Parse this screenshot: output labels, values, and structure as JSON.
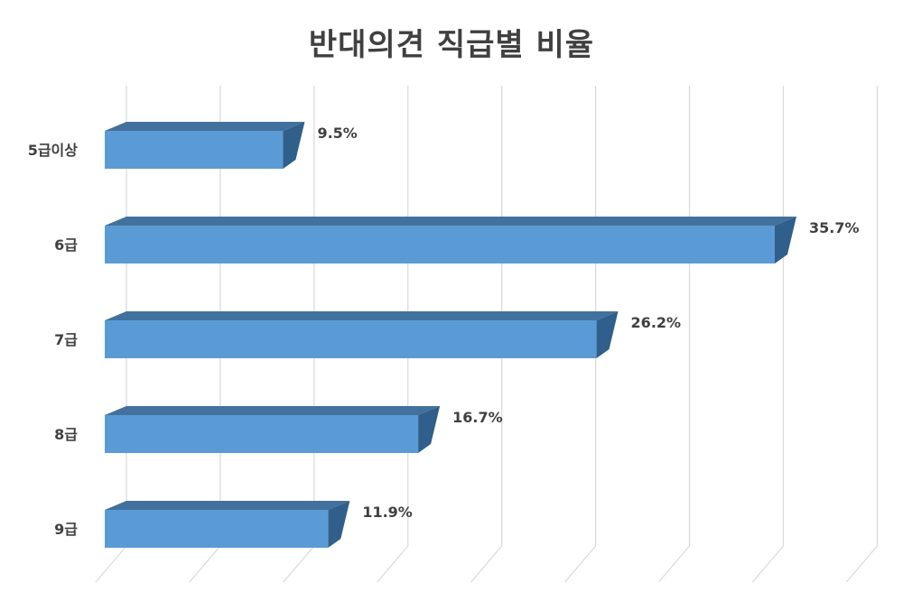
{
  "chart_data": {
    "type": "bar",
    "orientation": "horizontal",
    "style": "3d",
    "title": "반대의견 직급별 비율",
    "categories": [
      "5급이상",
      "6급",
      "7급",
      "8급",
      "9급"
    ],
    "values": [
      9.5,
      35.7,
      26.2,
      16.7,
      11.9
    ],
    "value_labels": [
      "9.5%",
      "35.7%",
      "26.2%",
      "16.7%",
      "11.9%"
    ],
    "unit": "%",
    "xlim": [
      0,
      40
    ],
    "grid": true,
    "legend": "none",
    "colors": {
      "bar_front": "#5b9bd5",
      "bar_top": "#41719c",
      "bar_side": "#2f5f8a",
      "grid": "#d9d9d9",
      "text": "#404040"
    }
  }
}
